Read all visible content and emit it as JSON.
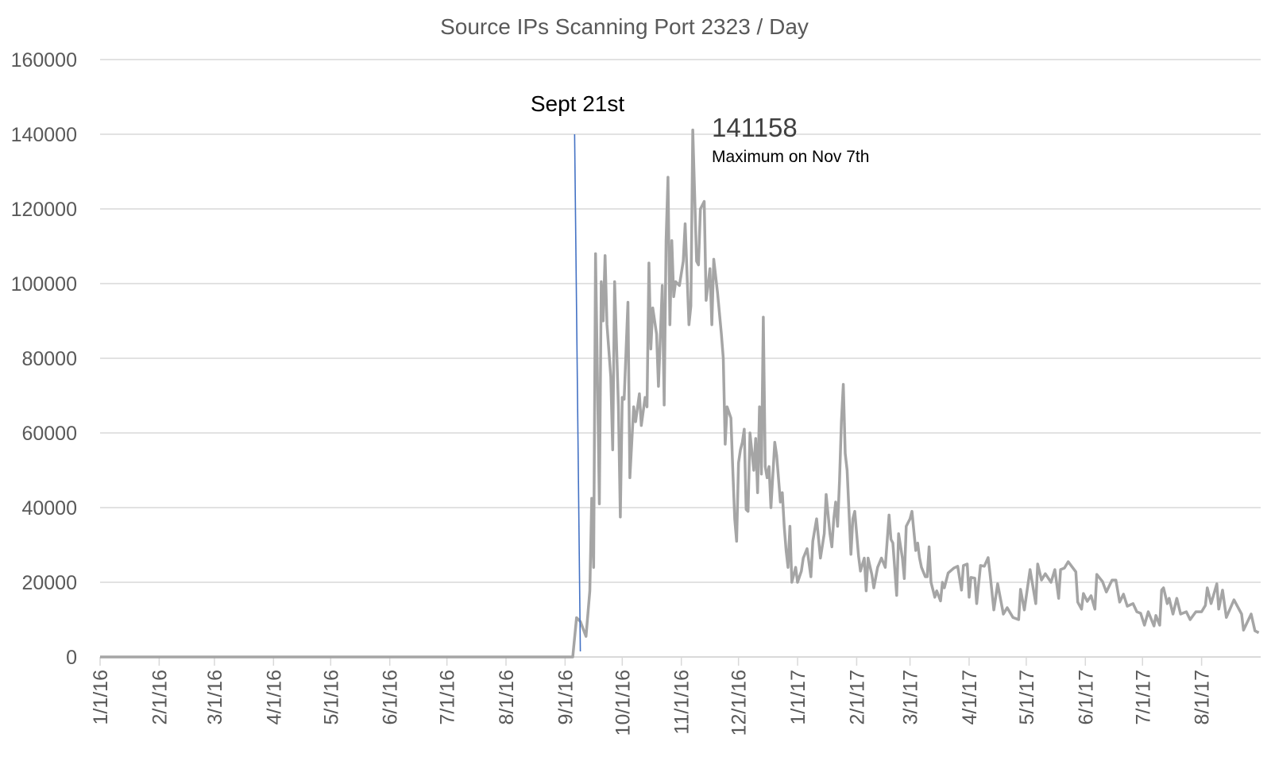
{
  "chart_data": {
    "type": "line",
    "title": "Source IPs Scanning Port 2323 / Day",
    "xlabel": "",
    "ylabel": "",
    "xlim": [
      "1/1/16",
      "8/31/17"
    ],
    "ylim": [
      0,
      160000
    ],
    "grid": true,
    "legend": "none",
    "y_ticks": [
      "0",
      "20000",
      "40000",
      "60000",
      "80000",
      "100000",
      "120000",
      "140000",
      "160000"
    ],
    "x_ticks": [
      "1/1/16",
      "2/1/16",
      "3/1/16",
      "4/1/16",
      "5/1/16",
      "6/1/16",
      "7/1/16",
      "8/1/16",
      "9/1/16",
      "10/1/16",
      "11/1/16",
      "12/1/16",
      "1/1/17",
      "2/1/17",
      "3/1/17",
      "4/1/17",
      "5/1/17",
      "6/1/17",
      "7/1/17",
      "8/1/17"
    ],
    "series": [
      {
        "name": "Source IPs",
        "color": "#a5a5a5",
        "points": [
          [
            "1/1/16",
            0
          ],
          [
            "9/5/16",
            0
          ],
          [
            "9/7/16",
            10500
          ],
          [
            "9/9/16",
            9500
          ],
          [
            "9/12/16",
            5500
          ],
          [
            "9/14/16",
            17700
          ],
          [
            "9/15/16",
            42500
          ],
          [
            "9/16/16",
            24000
          ],
          [
            "9/17/16",
            108000
          ],
          [
            "9/19/16",
            41000
          ],
          [
            "9/20/16",
            100500
          ],
          [
            "9/21/16",
            90000
          ],
          [
            "9/22/16",
            107500
          ],
          [
            "9/23/16",
            89000
          ],
          [
            "9/25/16",
            75000
          ],
          [
            "9/26/16",
            55500
          ],
          [
            "9/27/16",
            100500
          ],
          [
            "9/29/16",
            67000
          ],
          [
            "9/30/16",
            37500
          ],
          [
            "10/1/16",
            69500
          ],
          [
            "10/2/16",
            69000
          ],
          [
            "10/4/16",
            95000
          ],
          [
            "10/5/16",
            48000
          ],
          [
            "10/7/16",
            67000
          ],
          [
            "10/8/16",
            63000
          ],
          [
            "10/10/16",
            70500
          ],
          [
            "10/11/16",
            62000
          ],
          [
            "10/13/16",
            69500
          ],
          [
            "10/14/16",
            67000
          ],
          [
            "10/15/16",
            105500
          ],
          [
            "10/16/16",
            82500
          ],
          [
            "10/17/16",
            93500
          ],
          [
            "10/19/16",
            86500
          ],
          [
            "10/20/16",
            72500
          ],
          [
            "10/22/16",
            99500
          ],
          [
            "10/23/16",
            67500
          ],
          [
            "10/24/16",
            111500
          ],
          [
            "10/25/16",
            128500
          ],
          [
            "10/26/16",
            89000
          ],
          [
            "10/27/16",
            111500
          ],
          [
            "10/28/16",
            96500
          ],
          [
            "10/29/16",
            100500
          ],
          [
            "10/31/16",
            99500
          ],
          [
            "11/2/16",
            106000
          ],
          [
            "11/3/16",
            116000
          ],
          [
            "11/5/16",
            89000
          ],
          [
            "11/6/16",
            94000
          ],
          [
            "11/7/16",
            141158
          ],
          [
            "11/9/16",
            106000
          ],
          [
            "11/10/16",
            105000
          ],
          [
            "11/11/16",
            120000
          ],
          [
            "11/13/16",
            122000
          ],
          [
            "11/14/16",
            95500
          ],
          [
            "11/16/16",
            104000
          ],
          [
            "11/17/16",
            89000
          ],
          [
            "11/18/16",
            106500
          ],
          [
            "11/20/16",
            97500
          ],
          [
            "11/22/16",
            86500
          ],
          [
            "11/23/16",
            80000
          ],
          [
            "11/24/16",
            57000
          ],
          [
            "11/25/16",
            67000
          ],
          [
            "11/27/16",
            64000
          ],
          [
            "11/28/16",
            50000
          ],
          [
            "11/29/16",
            37000
          ],
          [
            "11/30/16",
            31000
          ],
          [
            "12/1/16",
            52000
          ],
          [
            "12/2/16",
            55500
          ],
          [
            "12/3/16",
            57500
          ],
          [
            "12/4/16",
            61000
          ],
          [
            "12/5/16",
            39500
          ],
          [
            "12/6/16",
            39000
          ],
          [
            "12/7/16",
            60000
          ],
          [
            "12/9/16",
            50000
          ],
          [
            "12/10/16",
            58500
          ],
          [
            "12/11/16",
            44000
          ],
          [
            "12/12/16",
            67000
          ],
          [
            "12/13/16",
            49000
          ],
          [
            "12/14/16",
            91000
          ],
          [
            "12/15/16",
            51000
          ],
          [
            "12/16/16",
            48000
          ],
          [
            "12/17/16",
            51000
          ],
          [
            "12/18/16",
            40000
          ],
          [
            "12/20/16",
            57500
          ],
          [
            "12/21/16",
            54000
          ],
          [
            "12/23/16",
            41500
          ],
          [
            "12/24/16",
            44000
          ],
          [
            "12/25/16",
            35000
          ],
          [
            "12/26/16",
            28500
          ],
          [
            "12/27/16",
            24000
          ],
          [
            "12/28/16",
            35000
          ],
          [
            "12/29/16",
            20000
          ],
          [
            "12/31/16",
            24000
          ],
          [
            "1/1/17",
            20000
          ],
          [
            "1/3/17",
            23000
          ],
          [
            "1/4/17",
            26500
          ],
          [
            "1/6/17",
            29000
          ],
          [
            "1/8/17",
            21500
          ],
          [
            "1/9/17",
            31000
          ],
          [
            "1/11/17",
            37000
          ],
          [
            "1/13/17",
            26500
          ],
          [
            "1/15/17",
            33000
          ],
          [
            "1/16/17",
            43500
          ],
          [
            "1/18/17",
            33000
          ],
          [
            "1/19/17",
            29500
          ],
          [
            "1/20/17",
            37000
          ],
          [
            "1/21/17",
            41500
          ],
          [
            "1/22/17",
            35000
          ],
          [
            "1/23/17",
            47000
          ],
          [
            "1/24/17",
            63000
          ],
          [
            "1/25/17",
            73000
          ],
          [
            "1/26/17",
            54500
          ],
          [
            "1/27/17",
            50000
          ],
          [
            "1/29/17",
            27500
          ],
          [
            "1/30/17",
            37000
          ],
          [
            "1/31/17",
            39000
          ],
          [
            "2/2/17",
            27000
          ],
          [
            "2/3/17",
            23000
          ],
          [
            "2/5/17",
            26500
          ],
          [
            "2/6/17",
            17700
          ],
          [
            "2/7/17",
            26500
          ],
          [
            "2/9/17",
            22000
          ],
          [
            "2/10/17",
            18500
          ],
          [
            "2/12/17",
            24000
          ],
          [
            "2/14/17",
            26500
          ],
          [
            "2/16/17",
            24000
          ],
          [
            "2/18/17",
            38000
          ],
          [
            "2/19/17",
            31500
          ],
          [
            "2/20/17",
            30500
          ],
          [
            "2/22/17",
            16500
          ],
          [
            "2/23/17",
            33000
          ],
          [
            "2/25/17",
            26500
          ],
          [
            "2/26/17",
            21000
          ],
          [
            "2/27/17",
            35000
          ],
          [
            "3/1/17",
            37000
          ],
          [
            "3/2/17",
            39000
          ],
          [
            "3/4/17",
            28500
          ],
          [
            "3/5/17",
            30500
          ],
          [
            "3/6/17",
            26500
          ],
          [
            "3/7/17",
            24000
          ],
          [
            "3/9/17",
            21500
          ],
          [
            "3/10/17",
            21500
          ],
          [
            "3/11/17",
            29500
          ],
          [
            "3/12/17",
            20000
          ],
          [
            "3/14/17",
            16000
          ],
          [
            "3/15/17",
            17700
          ],
          [
            "3/17/17",
            15000
          ],
          [
            "3/18/17",
            20000
          ],
          [
            "3/19/17",
            18500
          ],
          [
            "3/21/17",
            22500
          ],
          [
            "3/24/17",
            23800
          ],
          [
            "3/26/17",
            24300
          ],
          [
            "3/28/17",
            17900
          ],
          [
            "3/29/17",
            24500
          ],
          [
            "3/31/17",
            24900
          ],
          [
            "4/1/17",
            16000
          ],
          [
            "4/2/17",
            21300
          ],
          [
            "4/4/17",
            21100
          ],
          [
            "4/5/17",
            14300
          ],
          [
            "4/7/17",
            24500
          ],
          [
            "4/9/17",
            24300
          ],
          [
            "4/11/17",
            26600
          ],
          [
            "4/12/17",
            22300
          ],
          [
            "4/14/17",
            12600
          ],
          [
            "4/16/17",
            19600
          ],
          [
            "4/19/17",
            11500
          ],
          [
            "4/21/17",
            13200
          ],
          [
            "4/24/17",
            10600
          ],
          [
            "4/27/17",
            10000
          ],
          [
            "4/28/17",
            18100
          ],
          [
            "4/30/17",
            12600
          ],
          [
            "5/3/17",
            23400
          ],
          [
            "5/6/17",
            14300
          ],
          [
            "5/7/17",
            24900
          ],
          [
            "5/9/17",
            20600
          ],
          [
            "5/11/17",
            22300
          ],
          [
            "5/14/17",
            20000
          ],
          [
            "5/16/17",
            23400
          ],
          [
            "5/18/17",
            15700
          ],
          [
            "5/19/17",
            23400
          ],
          [
            "5/21/17",
            23800
          ],
          [
            "5/23/17",
            25500
          ],
          [
            "5/27/17",
            22800
          ],
          [
            "5/28/17",
            14700
          ],
          [
            "5/30/17",
            12800
          ],
          [
            "5/31/17",
            17000
          ],
          [
            "6/2/17",
            14900
          ],
          [
            "6/4/17",
            16400
          ],
          [
            "6/6/17",
            12800
          ],
          [
            "6/7/17",
            22100
          ],
          [
            "6/10/17",
            20200
          ],
          [
            "6/12/17",
            17400
          ],
          [
            "6/15/17",
            20600
          ],
          [
            "6/17/17",
            20600
          ],
          [
            "6/19/17",
            14700
          ],
          [
            "6/21/17",
            16800
          ],
          [
            "6/23/17",
            13600
          ],
          [
            "6/26/17",
            14300
          ],
          [
            "6/28/17",
            12100
          ],
          [
            "6/30/17",
            11700
          ],
          [
            "7/2/17",
            8500
          ],
          [
            "7/4/17",
            12100
          ],
          [
            "7/7/17",
            8300
          ],
          [
            "7/8/17",
            11100
          ],
          [
            "7/10/17",
            8500
          ],
          [
            "7/11/17",
            17900
          ],
          [
            "7/12/17",
            18500
          ],
          [
            "7/14/17",
            14300
          ],
          [
            "7/15/17",
            15700
          ],
          [
            "7/17/17",
            11500
          ],
          [
            "7/19/17",
            15700
          ],
          [
            "7/21/17",
            11500
          ],
          [
            "7/24/17",
            12100
          ],
          [
            "7/26/17",
            10000
          ],
          [
            "7/29/17",
            12100
          ],
          [
            "8/1/17",
            12100
          ],
          [
            "8/3/17",
            13800
          ],
          [
            "8/4/17",
            18500
          ],
          [
            "8/6/17",
            14300
          ],
          [
            "8/9/17",
            19600
          ],
          [
            "8/10/17",
            12800
          ],
          [
            "8/12/17",
            17900
          ],
          [
            "8/14/17",
            10600
          ],
          [
            "8/18/17",
            15300
          ],
          [
            "8/22/17",
            11500
          ],
          [
            "8/23/17",
            7200
          ],
          [
            "8/27/17",
            11500
          ],
          [
            "8/29/17",
            7000
          ],
          [
            "8/31/17",
            6500
          ]
        ]
      }
    ],
    "annotations": {
      "marker_label": "Sept 21st",
      "marker_line": {
        "x": [
          "9/6/16",
          "9/9/16"
        ],
        "y": [
          140000,
          1500
        ],
        "color": "#4472c4"
      },
      "max_value": "141158",
      "max_text": "Maximum on Nov 7th"
    }
  }
}
